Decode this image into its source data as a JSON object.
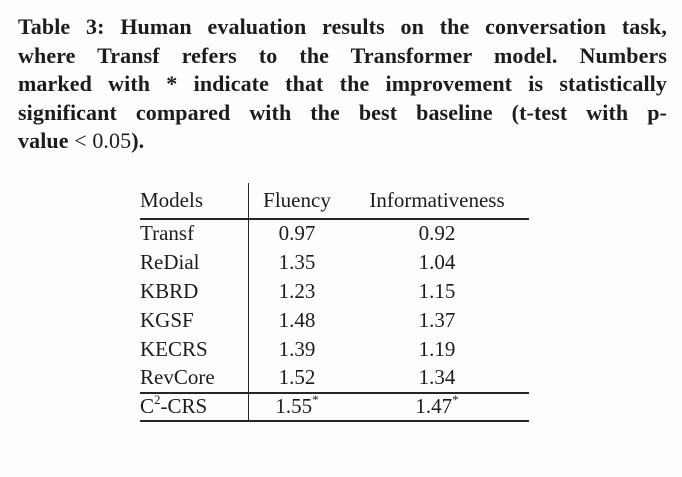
{
  "colors": {
    "background": "#fdfdfd",
    "text": "#1c1c1c",
    "rule": "#262626"
  },
  "caption": {
    "lines": [
      "Table 3: Human evaluation results on the conversation task,",
      "where Transf refers to the Transformer model. Numbers",
      "marked with * indicate that the improvement is statistically",
      "significant compared with the best baseline (t-test with p-"
    ],
    "last_line": {
      "bold_prefix": "value ",
      "math": "< 0.05",
      "bold_suffix": ")."
    }
  },
  "table": {
    "headers": [
      "Models",
      "Fluency",
      "Informativeness"
    ],
    "rows": [
      {
        "model": "Transf",
        "model_sup": "",
        "model_rest": "",
        "fluency": "0.97",
        "fluency_sup": "",
        "informativeness": "0.92",
        "informativeness_sup": "",
        "bold": false,
        "top_rule": false
      },
      {
        "model": "ReDial",
        "model_sup": "",
        "model_rest": "",
        "fluency": "1.35",
        "fluency_sup": "",
        "informativeness": "1.04",
        "informativeness_sup": "",
        "bold": false,
        "top_rule": false
      },
      {
        "model": "KBRD",
        "model_sup": "",
        "model_rest": "",
        "fluency": "1.23",
        "fluency_sup": "",
        "informativeness": "1.15",
        "informativeness_sup": "",
        "bold": false,
        "top_rule": false
      },
      {
        "model": "KGSF",
        "model_sup": "",
        "model_rest": "",
        "fluency": "1.48",
        "fluency_sup": "",
        "informativeness": "1.37",
        "informativeness_sup": "",
        "bold": false,
        "top_rule": false
      },
      {
        "model": "KECRS",
        "model_sup": "",
        "model_rest": "",
        "fluency": "1.39",
        "fluency_sup": "",
        "informativeness": "1.19",
        "informativeness_sup": "",
        "bold": false,
        "top_rule": false
      },
      {
        "model": "RevCore",
        "model_sup": "",
        "model_rest": "",
        "fluency": "1.52",
        "fluency_sup": "",
        "informativeness": "1.34",
        "informativeness_sup": "",
        "bold": false,
        "top_rule": false
      },
      {
        "model": "C",
        "model_sup": "2",
        "model_rest": "-CRS",
        "fluency": "1.55",
        "fluency_sup": "*",
        "informativeness": "1.47",
        "informativeness_sup": "*",
        "bold": true,
        "top_rule": true
      }
    ]
  }
}
